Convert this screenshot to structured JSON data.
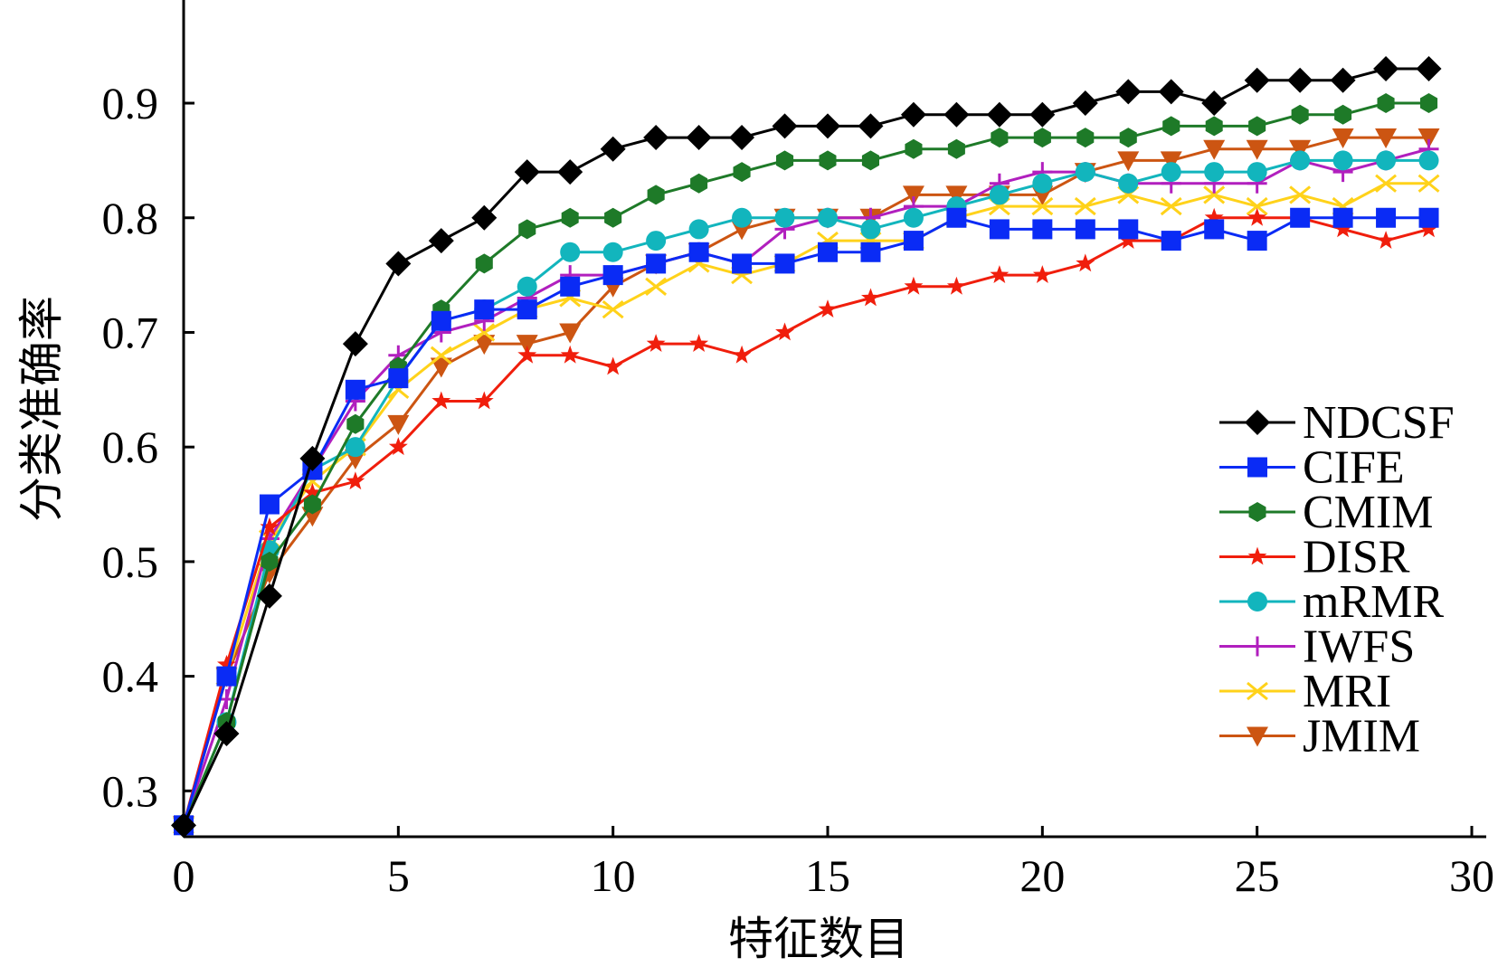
{
  "chart_data": {
    "type": "line",
    "title": "",
    "xlabel": "特征数目",
    "ylabel": "分类准确率",
    "xlim": [
      0,
      30
    ],
    "ylim": [
      0.26,
      0.99
    ],
    "xticks": [
      0,
      5,
      10,
      15,
      20,
      25,
      30
    ],
    "xtick_labels": [
      "0",
      "5",
      "10",
      "15",
      "20",
      "25",
      "30"
    ],
    "yticks": [
      0.3,
      0.4,
      0.5,
      0.6,
      0.7,
      0.8,
      0.9
    ],
    "ytick_labels": [
      "0.3",
      "0.4",
      "0.5",
      "0.6",
      "0.7",
      "0.8",
      "0.9"
    ],
    "grid": false,
    "legend_position": "bottom-right",
    "x": [
      0,
      1,
      2,
      3,
      4,
      5,
      6,
      7,
      8,
      9,
      10,
      11,
      12,
      13,
      14,
      15,
      16,
      17,
      18,
      19,
      20,
      21,
      22,
      23,
      24,
      25,
      26,
      27,
      28,
      29
    ],
    "series": [
      {
        "name": "NDCSF",
        "color": "#000000",
        "marker": "diamond",
        "values": [
          0.27,
          0.35,
          0.47,
          0.59,
          0.69,
          0.76,
          0.78,
          0.8,
          0.84,
          0.84,
          0.86,
          0.87,
          0.87,
          0.87,
          0.88,
          0.88,
          0.88,
          0.89,
          0.89,
          0.89,
          0.89,
          0.9,
          0.91,
          0.91,
          0.9,
          0.92,
          0.92,
          0.92,
          0.93,
          0.93
        ]
      },
      {
        "name": "CIFE",
        "color": "#0a2bf5",
        "marker": "square",
        "values": [
          0.27,
          0.4,
          0.55,
          0.58,
          0.65,
          0.66,
          0.71,
          0.72,
          0.72,
          0.74,
          0.75,
          0.76,
          0.77,
          0.76,
          0.76,
          0.77,
          0.77,
          0.78,
          0.8,
          0.79,
          0.79,
          0.79,
          0.79,
          0.78,
          0.79,
          0.78,
          0.8,
          0.8,
          0.8,
          0.8
        ]
      },
      {
        "name": "CMIM",
        "color": "#1e7a28",
        "marker": "hexagon",
        "values": [
          0.27,
          0.36,
          0.5,
          0.55,
          0.62,
          0.67,
          0.72,
          0.76,
          0.79,
          0.8,
          0.8,
          0.82,
          0.83,
          0.84,
          0.85,
          0.85,
          0.85,
          0.86,
          0.86,
          0.87,
          0.87,
          0.87,
          0.87,
          0.88,
          0.88,
          0.88,
          0.89,
          0.89,
          0.9,
          0.9
        ]
      },
      {
        "name": "DISR",
        "color": "#f01e0c",
        "marker": "star",
        "values": [
          0.27,
          0.41,
          0.53,
          0.56,
          0.57,
          0.6,
          0.64,
          0.64,
          0.68,
          0.68,
          0.67,
          0.69,
          0.69,
          0.68,
          0.7,
          0.72,
          0.73,
          0.74,
          0.74,
          0.75,
          0.75,
          0.76,
          0.78,
          0.78,
          0.8,
          0.8,
          0.8,
          0.79,
          0.78,
          0.79
        ]
      },
      {
        "name": "mRMR",
        "color": "#12b5bd",
        "marker": "circle",
        "values": [
          0.27,
          0.36,
          0.51,
          0.58,
          0.6,
          0.66,
          0.71,
          0.72,
          0.74,
          0.77,
          0.77,
          0.78,
          0.79,
          0.8,
          0.8,
          0.8,
          0.79,
          0.8,
          0.81,
          0.82,
          0.83,
          0.84,
          0.83,
          0.84,
          0.84,
          0.84,
          0.85,
          0.85,
          0.85,
          0.85
        ]
      },
      {
        "name": "IWFS",
        "color": "#b11fbe",
        "marker": "plus",
        "values": [
          0.27,
          0.38,
          0.52,
          0.58,
          0.64,
          0.68,
          0.7,
          0.71,
          0.73,
          0.75,
          0.75,
          0.76,
          0.77,
          0.76,
          0.79,
          0.8,
          0.8,
          0.81,
          0.81,
          0.83,
          0.84,
          0.84,
          0.83,
          0.83,
          0.83,
          0.83,
          0.85,
          0.84,
          0.85,
          0.86
        ]
      },
      {
        "name": "MRI",
        "color": "#ffd21a",
        "marker": "x",
        "values": [
          0.27,
          0.4,
          0.52,
          0.57,
          0.6,
          0.65,
          0.68,
          0.7,
          0.72,
          0.73,
          0.72,
          0.74,
          0.76,
          0.75,
          0.76,
          0.78,
          0.78,
          0.78,
          0.8,
          0.81,
          0.81,
          0.81,
          0.82,
          0.81,
          0.82,
          0.81,
          0.82,
          0.81,
          0.83,
          0.83
        ]
      },
      {
        "name": "JMIM",
        "color": "#cc5512",
        "marker": "triangle-down",
        "values": [
          0.27,
          0.4,
          0.49,
          0.54,
          0.59,
          0.62,
          0.67,
          0.69,
          0.69,
          0.7,
          0.74,
          0.76,
          0.77,
          0.79,
          0.8,
          0.8,
          0.8,
          0.82,
          0.82,
          0.82,
          0.82,
          0.84,
          0.85,
          0.85,
          0.86,
          0.86,
          0.86,
          0.87,
          0.87,
          0.87
        ]
      }
    ]
  }
}
